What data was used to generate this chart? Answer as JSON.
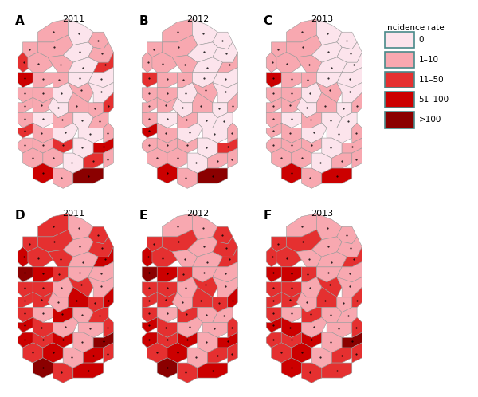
{
  "panel_labels": [
    "A",
    "B",
    "C",
    "D",
    "E",
    "F"
  ],
  "panel_years": [
    "2011",
    "2012",
    "2013",
    "2011",
    "2012",
    "2013"
  ],
  "legend_title": "Incidence rate",
  "legend_labels": [
    "0",
    "1–10",
    "11–50",
    "51–100",
    ">100"
  ],
  "legend_colors": [
    "#fce4ec",
    "#f8a8b0",
    "#e53030",
    "#cc0000",
    "#8b0000"
  ],
  "legend_edge_color": "#4a8a8a",
  "background_color": "#ffffff",
  "map_edge_color": "#999999",
  "map_edge_width": 0.4,
  "panel_label_fontsize": 11,
  "panel_label_weight": "bold",
  "year_fontsize": 8,
  "legend_fontsize": 7.5,
  "legend_title_fontsize": 7.5,
  "colors_A": [
    1,
    0,
    1,
    1,
    1,
    0,
    1,
    2,
    1,
    1,
    0,
    2,
    3,
    1,
    1,
    0,
    0,
    1,
    1,
    0,
    1,
    0,
    1,
    1,
    0,
    1,
    1,
    2,
    1,
    0,
    1,
    0,
    1,
    2,
    1,
    0,
    0,
    1,
    1,
    1,
    2,
    0,
    3,
    1,
    1,
    0,
    2,
    1,
    3,
    1,
    4
  ],
  "colors_B": [
    1,
    0,
    0,
    1,
    1,
    0,
    0,
    1,
    1,
    1,
    0,
    1,
    2,
    1,
    1,
    0,
    0,
    1,
    1,
    0,
    1,
    0,
    1,
    1,
    0,
    1,
    0,
    1,
    1,
    0,
    1,
    0,
    0,
    3,
    1,
    0,
    0,
    1,
    1,
    1,
    1,
    0,
    2,
    1,
    1,
    0,
    1,
    1,
    3,
    1,
    4
  ],
  "colors_C": [
    1,
    0,
    0,
    1,
    1,
    0,
    0,
    1,
    1,
    1,
    0,
    0,
    3,
    1,
    1,
    0,
    0,
    1,
    1,
    0,
    1,
    0,
    1,
    1,
    0,
    1,
    0,
    1,
    1,
    0,
    1,
    0,
    0,
    1,
    1,
    0,
    0,
    1,
    1,
    1,
    1,
    0,
    1,
    1,
    1,
    0,
    1,
    1,
    3,
    1,
    3
  ],
  "colors_D": [
    2,
    1,
    2,
    2,
    2,
    1,
    2,
    3,
    2,
    2,
    1,
    3,
    4,
    3,
    2,
    1,
    1,
    2,
    2,
    1,
    2,
    1,
    2,
    2,
    1,
    3,
    2,
    3,
    2,
    1,
    3,
    1,
    2,
    3,
    2,
    1,
    1,
    2,
    3,
    2,
    3,
    1,
    4,
    2,
    3,
    1,
    3,
    2,
    4,
    2,
    3
  ],
  "colors_E": [
    1,
    1,
    2,
    2,
    2,
    1,
    2,
    3,
    2,
    1,
    1,
    2,
    4,
    3,
    2,
    1,
    1,
    2,
    2,
    1,
    2,
    1,
    2,
    2,
    1,
    2,
    2,
    3,
    2,
    1,
    2,
    1,
    1,
    3,
    2,
    1,
    1,
    2,
    3,
    2,
    3,
    1,
    3,
    2,
    3,
    1,
    2,
    2,
    4,
    2,
    3
  ],
  "colors_F": [
    1,
    1,
    1,
    2,
    2,
    1,
    1,
    2,
    2,
    1,
    1,
    2,
    3,
    3,
    2,
    1,
    1,
    2,
    2,
    1,
    2,
    1,
    2,
    2,
    1,
    2,
    1,
    2,
    2,
    1,
    2,
    1,
    1,
    3,
    3,
    1,
    1,
    2,
    2,
    2,
    3,
    1,
    4,
    2,
    3,
    1,
    2,
    2,
    3,
    2,
    2
  ]
}
